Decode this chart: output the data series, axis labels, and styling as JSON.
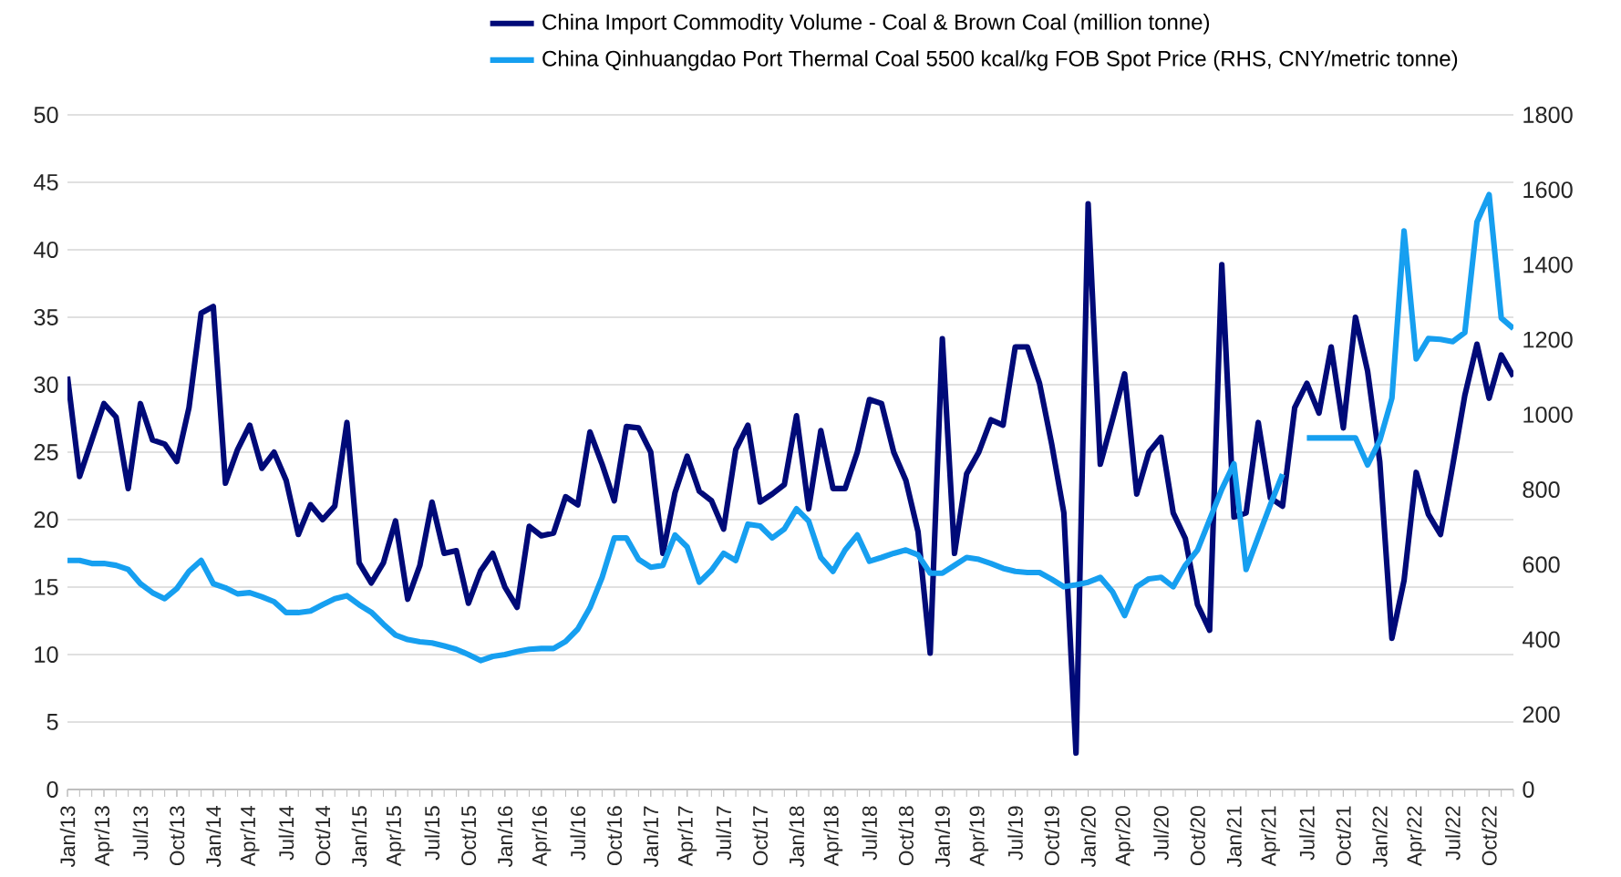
{
  "chart_data": {
    "type": "line",
    "categories": [
      "Jan/13",
      null,
      null,
      "Apr/13",
      null,
      null,
      "Jul/13",
      null,
      null,
      "Oct/13",
      null,
      null,
      "Jan/14",
      null,
      null,
      "Apr/14",
      null,
      null,
      "Jul/14",
      null,
      null,
      "Oct/14",
      null,
      null,
      "Jan/15",
      null,
      null,
      "Apr/15",
      null,
      null,
      "Jul/15",
      null,
      null,
      "Oct/15",
      null,
      null,
      "Jan/16",
      null,
      null,
      "Apr/16",
      null,
      null,
      "Jul/16",
      null,
      null,
      "Oct/16",
      null,
      null,
      "Jan/17",
      null,
      null,
      "Apr/17",
      null,
      null,
      "Jul/17",
      null,
      null,
      "Oct/17",
      null,
      null,
      "Jan/18",
      null,
      null,
      "Apr/18",
      null,
      null,
      "Jul/18",
      null,
      null,
      "Oct/18",
      null,
      null,
      "Jan/19",
      null,
      null,
      "Apr/19",
      null,
      null,
      "Jul/19",
      null,
      null,
      "Oct/19",
      null,
      null,
      "Jan/20",
      null,
      null,
      "Apr/20",
      null,
      null,
      "Jul/20",
      null,
      null,
      "Oct/20",
      null,
      null,
      "Jan/21",
      null,
      null,
      "Apr/21",
      null,
      null,
      "Jul/21",
      null,
      null,
      "Oct/21",
      null,
      null,
      "Jan/22",
      null,
      null,
      "Apr/22",
      null,
      null,
      "Jul/22",
      null,
      null,
      "Oct/22",
      null,
      null
    ],
    "series": [
      {
        "name": "China Import Commodity Volume - Coal & Brown Coal (million tonne)",
        "color": "#000a78",
        "values": [
          30.6,
          23.2,
          25.9,
          28.6,
          27.6,
          22.3,
          28.6,
          25.9,
          25.6,
          24.3,
          28.3,
          35.3,
          35.8,
          22.7,
          25.2,
          27.0,
          23.8,
          25.0,
          22.9,
          18.9,
          21.1,
          20.0,
          21.0,
          27.2,
          16.8,
          15.3,
          16.8,
          19.9,
          14.1,
          16.6,
          21.3,
          17.5,
          17.7,
          13.8,
          16.2,
          17.5,
          15.0,
          13.5,
          19.5,
          18.8,
          19.0,
          21.7,
          21.1,
          26.5,
          24.1,
          21.4,
          26.9,
          26.8,
          25.0,
          17.5,
          22.0,
          24.7,
          22.1,
          21.4,
          19.3,
          25.2,
          27.0,
          21.3,
          21.9,
          22.6,
          27.7,
          20.8,
          26.6,
          22.3,
          22.3,
          25.0,
          28.9,
          28.6,
          25.0,
          22.9,
          19.1,
          10.1,
          33.4,
          17.5,
          23.4,
          25.0,
          27.4,
          27.0,
          32.8,
          32.8,
          30.1,
          25.6,
          20.5,
          2.7,
          43.4,
          24.1,
          27.4,
          30.8,
          21.9,
          25.0,
          26.1,
          20.5,
          18.6,
          13.7,
          11.8,
          38.9,
          20.2,
          20.5,
          27.2,
          21.6,
          21.0,
          28.3,
          30.1,
          27.9,
          32.8,
          26.8,
          35.0,
          31.0,
          24.3,
          11.2,
          15.5,
          23.5,
          20.4,
          18.9,
          24.0,
          29.2,
          33.0,
          29.0,
          32.2,
          30.6
        ]
      },
      {
        "name": "China Qinhuangdao Port Thermal Coal 5500 kcal/kg FOB Spot Price (RHS, CNY/metric tonne)",
        "color": "#169ff0",
        "axis": "y2",
        "values": [
          611,
          611,
          603,
          603,
          598,
          587,
          549,
          525,
          509,
          536,
          582,
          611,
          549,
          538,
          522,
          525,
          514,
          501,
          472,
          472,
          476,
          493,
          509,
          517,
          493,
          473,
          441,
          412,
          400,
          394,
          391,
          383,
          374,
          360,
          344,
          355,
          360,
          368,
          374,
          376,
          376,
          395,
          428,
          485,
          566,
          671,
          671,
          614,
          593,
          598,
          679,
          647,
          553,
          585,
          630,
          611,
          708,
          703,
          671,
          695,
          749,
          716,
          619,
          582,
          639,
          679,
          609,
          619,
          630,
          639,
          626,
          577,
          577,
          598,
          619,
          614,
          603,
          590,
          582,
          579,
          579,
          561,
          541,
          546,
          553,
          566,
          528,
          464,
          541,
          562,
          566,
          541,
          598,
          639,
          720,
          801,
          869,
          587,
          674,
          760,
          841,
          null,
          938,
          938,
          938,
          938,
          938,
          866,
          931,
          1044,
          1490,
          1149,
          1203,
          1201,
          1195,
          1219,
          1514,
          1587,
          1258,
          1230
        ]
      }
    ],
    "ylim": [
      0,
      50
    ],
    "yticks": [
      0,
      5,
      10,
      15,
      20,
      25,
      30,
      35,
      40,
      45,
      50
    ],
    "y2lim": [
      0,
      1800
    ],
    "y2ticks": [
      0,
      200,
      400,
      600,
      800,
      1000,
      1200,
      1400,
      1600,
      1800
    ],
    "grid": "y",
    "legend": "top"
  }
}
